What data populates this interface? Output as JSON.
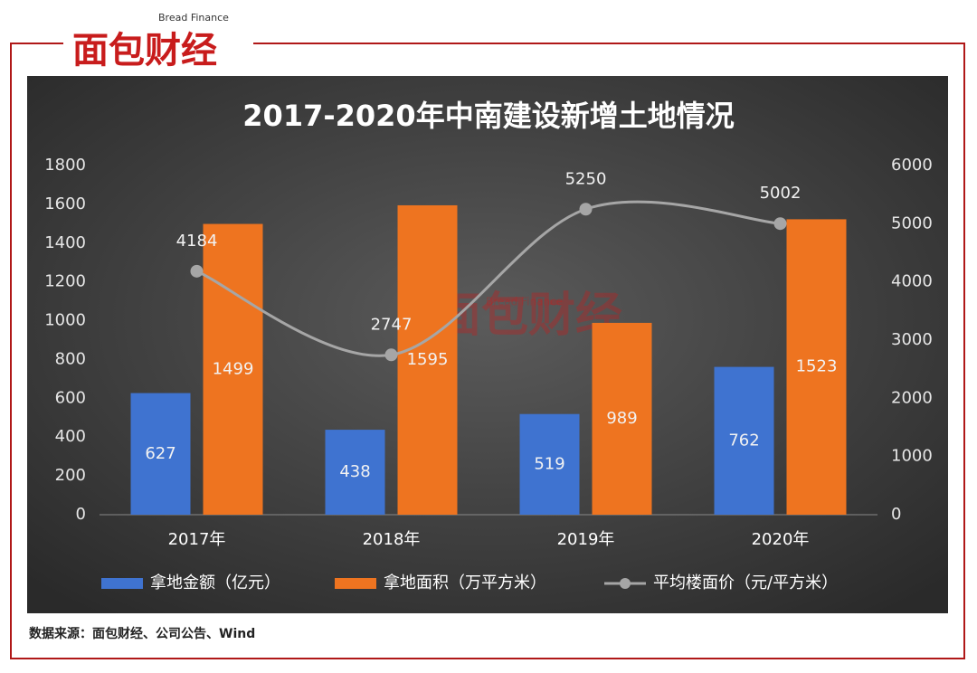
{
  "logo": {
    "name": "面包财经",
    "english": "Bread Finance"
  },
  "source": "数据来源：面包财经、公司公告、Wind",
  "chart_data": {
    "type": "bar",
    "title": "2017-2020年中南建设新增土地情况",
    "categories": [
      "2017年",
      "2018年",
      "2019年",
      "2020年"
    ],
    "series": [
      {
        "name": "拿地金额（亿元）",
        "color": "#3f73d0",
        "values": [
          627,
          438,
          519,
          762
        ]
      },
      {
        "name": "拿地面积（万平方米）",
        "color": "#ee7420",
        "values": [
          1499,
          1595,
          989,
          1523
        ]
      },
      {
        "name": "平均楼面价（元/平方米）",
        "color": "#a6a6a6",
        "type": "line",
        "axis": "y2",
        "values": [
          4184,
          2747,
          5250,
          5002
        ]
      }
    ],
    "ylim": [
      0,
      1800
    ],
    "yticks": [
      0,
      200,
      400,
      600,
      800,
      1000,
      1200,
      1400,
      1600,
      1800
    ],
    "y2lim": [
      0,
      6000
    ],
    "y2ticks": [
      0,
      1000,
      2000,
      3000,
      4000,
      5000,
      6000
    ],
    "legend": "bottom"
  }
}
